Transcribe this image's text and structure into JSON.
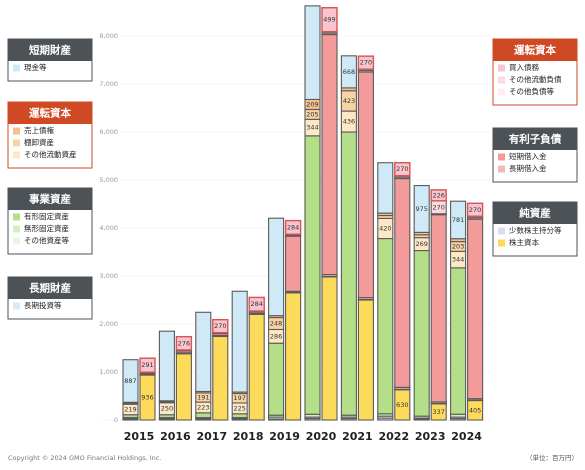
{
  "chart_data": {
    "type": "bar",
    "categories": [
      "2015",
      "2016",
      "2017",
      "2018",
      "2019",
      "2020",
      "2021",
      "2022",
      "2023",
      "2024"
    ],
    "ylim": [
      0,
      8700
    ],
    "yticks": [
      0,
      {
        "value": 1000,
        "label": "1,000"
      },
      {
        "value": 2000,
        "label": "2,000"
      },
      {
        "value": 3000,
        "label": "3,000"
      },
      {
        "value": 4000,
        "label": "4,000"
      },
      {
        "value": 5000,
        "label": "5,000"
      },
      {
        "value": 6000,
        "label": "6,000"
      },
      {
        "value": 7000,
        "label": "7,000"
      },
      {
        "value": 8000,
        "label": "8,000"
      }
    ],
    "grid": true,
    "assets": [
      {
        "title": "短期財産",
        "color": "#4d5257",
        "series": [
          {
            "name": "現金等",
            "color": "#cfe9f6",
            "values": [
              887,
              1450,
              1650,
              2100,
              2030,
              1950,
              668,
              1050,
              975,
              781
            ],
            "value_labels": [
              "887",
              null,
              null,
              null,
              null,
              null,
              "668",
              null,
              "975",
              "781"
            ]
          }
        ]
      },
      {
        "title": "運転資本",
        "color": "#cf4a24",
        "series": [
          {
            "name": "売上債権",
            "color": "#f6c08e",
            "values": [
              20,
              20,
              30,
              30,
              40,
              209,
              60,
              50,
              50,
              60
            ],
            "value_labels": [
              null,
              null,
              null,
              null,
              null,
              "209",
              null,
              null,
              null,
              null
            ]
          },
          {
            "name": "棚卸資産",
            "color": "#f9d3a6",
            "values": [
              20,
              20,
              191,
              197,
              248,
              205,
              423,
              60,
              60,
              203
            ],
            "value_labels": [
              null,
              null,
              "191",
              "197",
              "248",
              "205",
              "423",
              null,
              null,
              "203"
            ]
          },
          {
            "name": "その他流動資産",
            "color": "#fde8c6",
            "values": [
              219,
              250,
              223,
              225,
              286,
              344,
              436,
              420,
              269,
              344
            ],
            "value_labels": [
              "219",
              "250",
              "223",
              "225",
              "286",
              "344",
              "436",
              "420",
              "269",
              "344"
            ]
          }
        ]
      },
      {
        "title": "事業資産",
        "color": "#4d5257",
        "series": [
          {
            "name": "有形固定資産",
            "color": "#b4df88",
            "values": [
              60,
              60,
              100,
              80,
              1500,
              5800,
              5900,
              3650,
              3450,
              3050
            ]
          },
          {
            "name": "無形固定資産",
            "color": "#d6efbf",
            "values": [
              20,
              20,
              20,
              20,
              40,
              60,
              40,
              50,
              40,
              60
            ]
          },
          {
            "name": "その他資産等",
            "color": "#eaf6de",
            "values": [
              20,
              20,
              20,
              20,
              40,
              30,
              30,
              40,
              20,
              30
            ]
          }
        ]
      },
      {
        "title": "長期財産",
        "color": "#4d5257",
        "series": [
          {
            "name": "長期投資等",
            "color": "#d9ebf7",
            "values": [
              10,
              10,
              10,
              10,
              20,
              30,
              30,
              40,
              20,
              30
            ]
          }
        ]
      }
    ],
    "liabilities": [
      {
        "title": "運転資本",
        "color": "#cf4a24",
        "series": [
          {
            "name": "買入債務",
            "color": "#f8c4cf",
            "stroke": "#d9534f",
            "values": [
              291,
              276,
              270,
              284,
              284,
              499,
              270,
              270,
              226,
              270
            ],
            "value_labels": [
              "291",
              "276",
              "270",
              "284",
              "284",
              "499",
              "270",
              "270",
              "226",
              "270"
            ]
          },
          {
            "name": "その他流動負債",
            "color": "#fad9e0",
            "values": [
              10,
              10,
              10,
              10,
              20,
              30,
              30,
              30,
              270,
              30
            ],
            "value_labels": [
              null,
              null,
              null,
              null,
              null,
              null,
              null,
              null,
              "270",
              null
            ]
          },
          {
            "name": "その他負債等",
            "color": "#fdedf1",
            "values": [
              10,
              10,
              10,
              10,
              20,
              30,
              30,
              30,
              20,
              30
            ]
          }
        ]
      },
      {
        "title": "有利子負債",
        "color": "#4d5257",
        "series": [
          {
            "name": "短期借入金",
            "color": "#f39a9a",
            "values": [
              20,
              40,
              40,
              30,
              1150,
              5000,
              4700,
              4350,
              3900,
              3740
            ]
          },
          {
            "name": "長期借入金",
            "color": "#f6b7b7",
            "values": [
              10,
              10,
              10,
              10,
              20,
              40,
              40,
              40,
              30,
              30
            ]
          }
        ]
      },
      {
        "title": "純資産",
        "color": "#4d5257",
        "series": [
          {
            "name": "少数株主持分等",
            "color": "#d6def1",
            "values": [
              10,
              10,
              10,
              10,
              10,
              10,
              10,
              10,
              10,
              10
            ]
          },
          {
            "name": "株主資本",
            "color": "#fddb5a",
            "values": [
              936,
              1380,
              1740,
              2200,
              2650,
              2980,
              2500,
              630,
              337,
              405
            ],
            "value_labels": [
              "936",
              null,
              null,
              null,
              null,
              null,
              null,
              "630",
              "337",
              "405"
            ]
          }
        ]
      }
    ],
    "copyright": "Copyright © 2024 GMO Financial Holdings, Inc.",
    "unit": "（単位：百万円）"
  }
}
